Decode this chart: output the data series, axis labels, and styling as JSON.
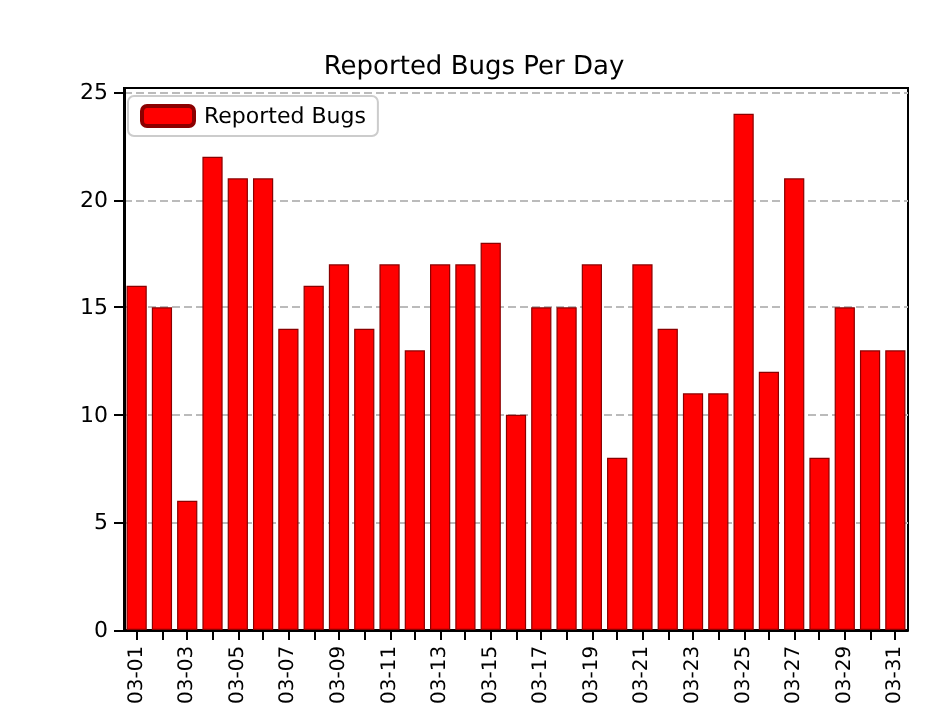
{
  "chart_data": {
    "type": "bar",
    "title": "Reported Bugs Per Day",
    "categories": [
      "03-01",
      null,
      "03-03",
      null,
      "03-05",
      null,
      "03-07",
      null,
      "03-09",
      null,
      "03-11",
      null,
      "03-13",
      null,
      "03-15",
      null,
      "03-17",
      null,
      "03-19",
      null,
      "03-21",
      null,
      "03-23",
      null,
      "03-25",
      null,
      "03-27",
      null,
      "03-29",
      null,
      "03-31"
    ],
    "series": [
      {
        "name": "Reported Bugs",
        "color": "#ff0000",
        "values": [
          16,
          15,
          6,
          22,
          21,
          21,
          14,
          16,
          17,
          14,
          17,
          13,
          17,
          17,
          18,
          10,
          15,
          15,
          17,
          8,
          17,
          14,
          11,
          11,
          24,
          12,
          21,
          8,
          15,
          13,
          13
        ]
      }
    ],
    "ylim": [
      0,
      25.2
    ],
    "yticks": [
      0,
      5,
      10,
      15,
      20,
      25
    ],
    "grid": "y",
    "legend": "top left"
  }
}
